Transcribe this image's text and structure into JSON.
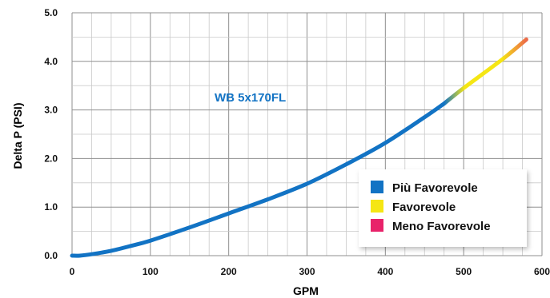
{
  "chart_data": {
    "type": "line",
    "xlabel": "GPM",
    "ylabel": "Delta P (PSI)",
    "xlim": [
      0,
      600
    ],
    "ylim": [
      0,
      5
    ],
    "x_ticks": [
      "0",
      "100",
      "200",
      "300",
      "400",
      "500",
      "600"
    ],
    "y_ticks": [
      "0.0",
      "1.0",
      "2.0",
      "3.0",
      "4.0",
      "5.0"
    ],
    "grid": true,
    "annotation": "WB 5x170FL",
    "legend_position": "bottom-right",
    "legend": [
      {
        "label": "Più Favorevole",
        "color": "#1273c4"
      },
      {
        "label": "Favorevole",
        "color": "#f5e614"
      },
      {
        "label": "Meno Favorevole",
        "color": "#e8226a"
      }
    ],
    "series": [
      {
        "x": [
          0,
          10,
          25,
          50,
          75,
          100,
          150,
          200,
          250,
          300,
          350,
          400,
          450,
          475,
          500,
          550,
          580
        ],
        "y": [
          0.0,
          0.0,
          0.03,
          0.1,
          0.2,
          0.31,
          0.58,
          0.87,
          1.16,
          1.48,
          1.88,
          2.32,
          2.85,
          3.13,
          3.45,
          4.05,
          4.45
        ]
      }
    ],
    "colors": {
      "favorable": "#1273c4",
      "transition": "#f5e614",
      "end": "#ec6a4a",
      "annotation": "#1273c4"
    }
  }
}
